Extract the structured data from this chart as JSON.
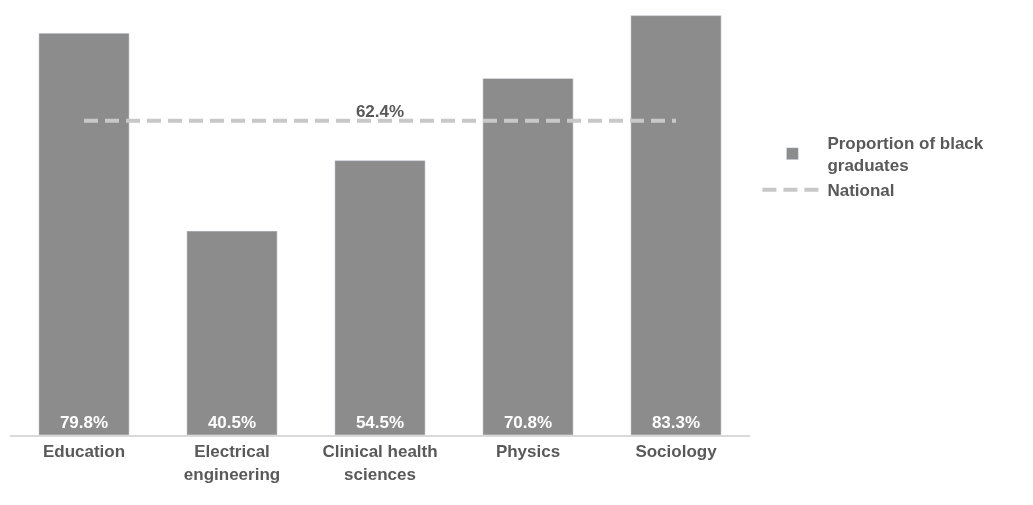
{
  "chart_data": {
    "type": "bar",
    "categories": [
      "Education",
      "Electrical engineering",
      "Clinical health sciences",
      "Physics",
      "Sociology"
    ],
    "series": [
      {
        "name": "Proportion of black graduates",
        "type": "bar",
        "color": "#8c8c8c",
        "values": [
          79.8,
          40.5,
          54.5,
          70.8,
          83.3
        ],
        "value_labels": [
          "79.8%",
          "40.5%",
          "54.5%",
          "70.8%",
          "83.3%"
        ]
      },
      {
        "name": "National",
        "type": "line",
        "color": "#c8c8c8",
        "line_style": "dashed",
        "values": [
          62.4,
          62.4,
          62.4,
          62.4,
          62.4
        ],
        "value_labels": [
          null,
          null,
          "62.4%",
          null,
          null
        ]
      }
    ],
    "ylim": [
      0,
      86
    ],
    "tick_labels": "x",
    "legend": "right",
    "marker": "none"
  }
}
